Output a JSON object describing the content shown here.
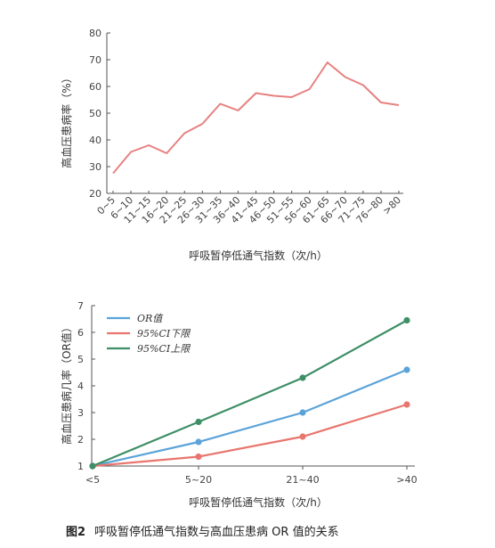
{
  "chart_data": [
    {
      "type": "line",
      "title": "",
      "xlabel": "呼吸暂停低通气指数（次/h）",
      "ylabel": "高血压患病率（%）",
      "categories": [
        "0~5",
        "6~10",
        "11~15",
        "16~20",
        "21~25",
        "26~30",
        "31~35",
        "36~40",
        "41~45",
        "46~50",
        "51~55",
        "56~60",
        "61~65",
        "66~70",
        "71~75",
        "76~80",
        ">80"
      ],
      "series": [
        {
          "values": [
            27.5,
            35.5,
            38,
            35,
            42.5,
            46,
            53.5,
            51,
            57.5,
            56.5,
            56,
            59,
            69,
            63.5,
            60.5,
            54,
            53
          ]
        }
      ],
      "ylim": [
        20,
        80
      ],
      "yticks": [
        20,
        30,
        40,
        50,
        60,
        70,
        80
      ],
      "color": "#e88080",
      "grid": false
    },
    {
      "type": "line",
      "title": "",
      "xlabel": "呼吸暂停低通气指数（次/h）",
      "ylabel": "高血压患病几率（OR值）",
      "categories": [
        "<5",
        "5~20",
        "21~40",
        ">40"
      ],
      "series": [
        {
          "name": "OR值",
          "values": [
            1.0,
            1.9,
            3.0,
            4.6
          ],
          "color": "#5ba3d9"
        },
        {
          "name": "95%CI下限",
          "values": [
            1.0,
            1.35,
            2.1,
            3.3
          ],
          "color": "#e8766e"
        },
        {
          "name": "95%CI上限",
          "values": [
            1.0,
            2.65,
            4.3,
            6.45
          ],
          "color": "#3e8f66"
        }
      ],
      "ylim": [
        1,
        7
      ],
      "yticks": [
        1,
        2,
        3,
        4,
        5,
        6,
        7
      ],
      "legend_position": "top-left",
      "grid": false
    }
  ],
  "caption": {
    "number": "图2",
    "text": "呼吸暂停低通气指数与高血压患病 OR 值的关系"
  }
}
